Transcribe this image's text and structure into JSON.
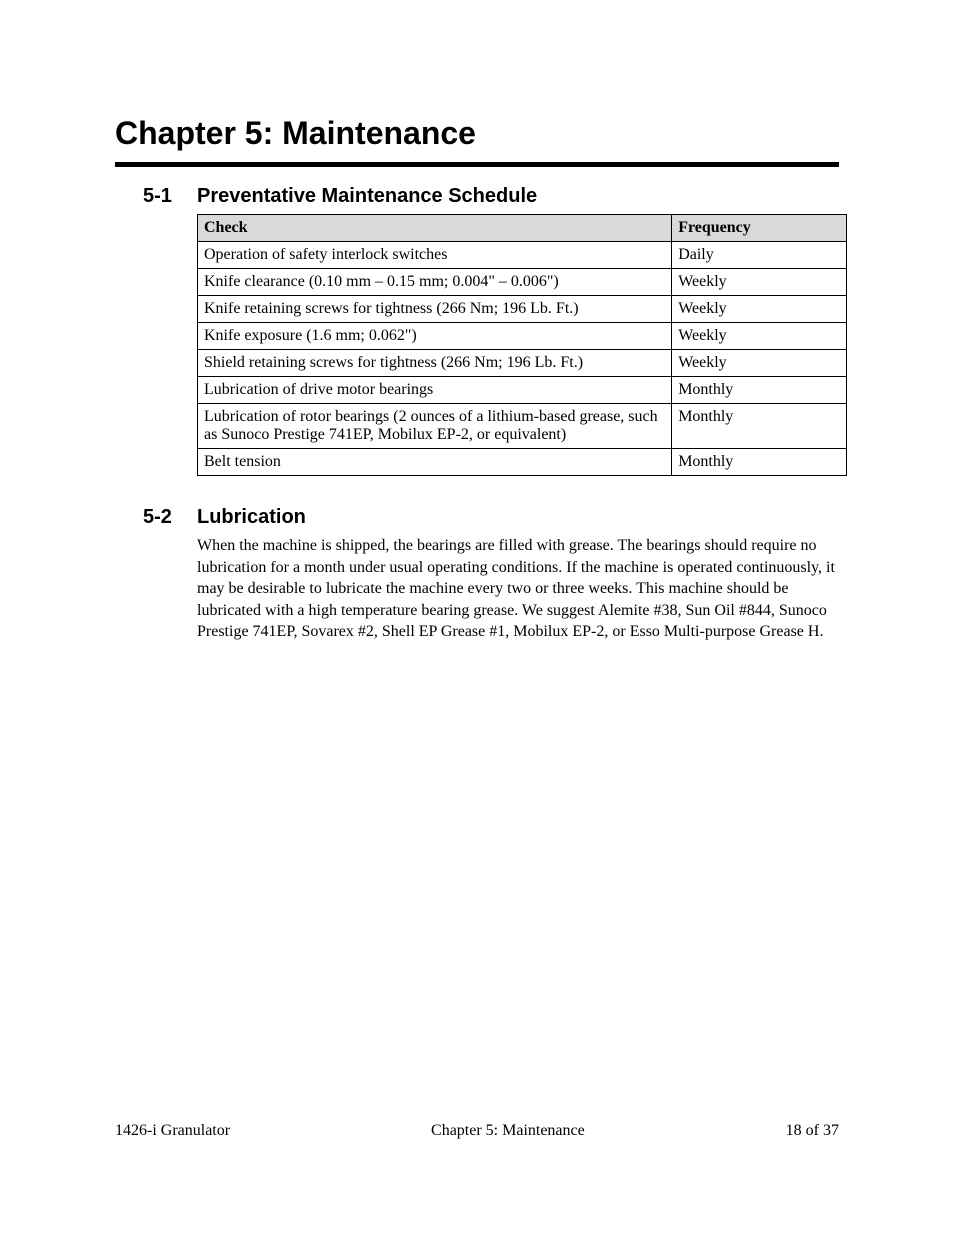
{
  "chapter_title": "Chapter 5: Maintenance",
  "sections": {
    "s1": {
      "number": "5-1",
      "title": "Preventative Maintenance Schedule",
      "table": {
        "columns": [
          "Check",
          "Frequency"
        ],
        "rows": [
          [
            "Operation of safety interlock switches",
            "Daily"
          ],
          [
            "Knife clearance (0.10 mm – 0.15 mm; 0.004\" – 0.006\")",
            "Weekly"
          ],
          [
            "Knife retaining screws for tightness (266 Nm; 196 Lb. Ft.)",
            "Weekly"
          ],
          [
            "Knife exposure (1.6 mm; 0.062\")",
            "Weekly"
          ],
          [
            "Shield retaining screws for tightness (266 Nm; 196 Lb. Ft.)",
            "Weekly"
          ],
          [
            "Lubrication of drive motor bearings",
            "Monthly"
          ],
          [
            "Lubrication of rotor bearings (2 ounces of a lithium-based grease, such as Sunoco Prestige 741EP, Mobilux EP-2, or equivalent)",
            "Monthly"
          ],
          [
            "Belt tension",
            "Monthly"
          ]
        ]
      }
    },
    "s2": {
      "number": "5-2",
      "title": "Lubrication",
      "body": "When the machine is shipped, the bearings are filled with grease. The bearings should require no lubrication for a month under usual operating conditions. If the machine is operated continuously, it may be desirable to lubricate the machine every two or three weeks. This machine should be lubricated with a high temperature bearing grease. We suggest Alemite #38, Sun Oil #844, Sunoco Prestige 741EP, Sovarex #2, Shell EP Grease #1, Mobilux EP-2, or Esso Multi-purpose Grease H."
    }
  },
  "footer": {
    "left": "1426-i Granulator",
    "center": "Chapter 5: Maintenance",
    "right": "18 of 37"
  }
}
